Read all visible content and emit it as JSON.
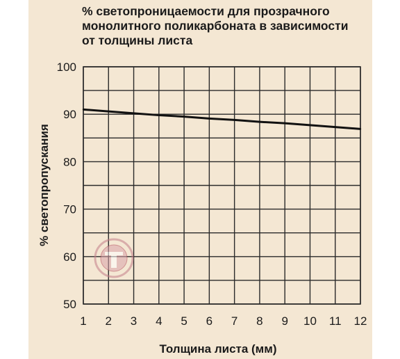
{
  "chart_data": {
    "type": "line",
    "title": "% светопроницаемости для прозрачного\nмонолитного поликарбоната в зависимости\nот толщины листа",
    "xlabel": "Толщина листа (мм)",
    "ylabel": "% светопропускания",
    "xlim": [
      1,
      12
    ],
    "ylim": [
      50,
      100
    ],
    "x_ticks": [
      1,
      2,
      3,
      4,
      5,
      6,
      7,
      8,
      9,
      10,
      11,
      12
    ],
    "y_ticks": [
      50,
      60,
      70,
      80,
      90,
      100
    ],
    "y_minor_step": 5,
    "grid": true,
    "line_color": "#111111",
    "grid_color": "#2a2a2a",
    "background_color": "#f4e7d3",
    "series": [
      {
        "x": [
          1,
          2,
          3,
          4,
          5,
          6,
          7,
          8,
          9,
          10,
          11,
          12
        ],
        "values": [
          91,
          90.6,
          90.2,
          89.8,
          89.5,
          89.1,
          88.8,
          88.4,
          88.1,
          87.7,
          87.3,
          86.9
        ]
      }
    ]
  }
}
